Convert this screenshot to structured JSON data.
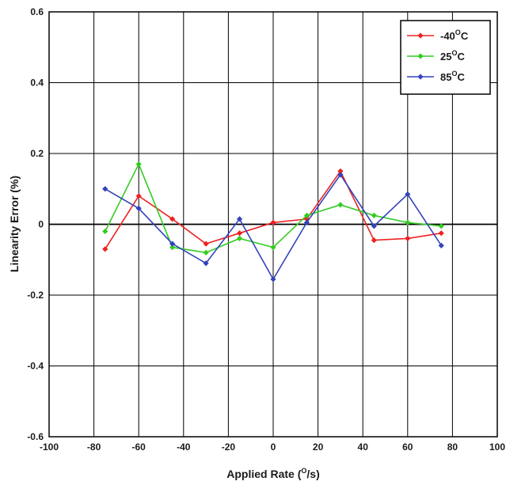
{
  "chart_data": {
    "type": "line",
    "xlabel": {
      "pre": "Applied Rate (",
      "sup": "O",
      "post": "/s)"
    },
    "ylabel": "Linearity Error (%)",
    "xlim": [
      -100,
      100
    ],
    "ylim": [
      -0.6,
      0.6
    ],
    "xticks": [
      -100,
      -80,
      -60,
      -40,
      -20,
      0,
      20,
      40,
      60,
      80,
      100
    ],
    "yticks": [
      -0.6,
      -0.4,
      -0.2,
      0,
      0.2,
      0.4,
      0.6
    ],
    "xtick_labels": [
      "-100",
      "-80",
      "-60",
      "-40",
      "-20",
      "0",
      "20",
      "40",
      "60",
      "80",
      "100"
    ],
    "ytick_labels": [
      "-0.6",
      "-0.4",
      "-0.2",
      "0",
      "0.2",
      "0.4",
      "0.6"
    ],
    "grid": true,
    "legend_position": "top-right",
    "series": [
      {
        "label": {
          "pre": "-40",
          "sup": "O",
          "post": "C"
        },
        "color": "#ee2222",
        "x": [
          -75,
          -60,
          -45,
          -30,
          -15,
          0,
          15,
          30,
          45,
          60,
          75
        ],
        "y": [
          -0.07,
          0.08,
          0.015,
          -0.055,
          -0.025,
          0.005,
          0.015,
          0.15,
          -0.045,
          -0.04,
          -0.025
        ]
      },
      {
        "label": {
          "pre": "25",
          "sup": "O",
          "post": "C"
        },
        "color": "#33cc22",
        "x": [
          -75,
          -60,
          -45,
          -30,
          -15,
          0,
          15,
          30,
          45,
          60,
          75
        ],
        "y": [
          -0.02,
          0.17,
          -0.065,
          -0.08,
          -0.04,
          -0.065,
          0.025,
          0.055,
          0.025,
          0.005,
          -0.005
        ]
      },
      {
        "label": {
          "pre": "85",
          "sup": "O",
          "post": "C"
        },
        "color": "#3344bb",
        "x": [
          -75,
          -60,
          -45,
          -30,
          -15,
          0,
          15,
          30,
          45,
          60,
          75
        ],
        "y": [
          0.1,
          0.045,
          -0.055,
          -0.11,
          0.015,
          -0.155,
          0.005,
          0.14,
          -0.005,
          0.085,
          -0.06
        ]
      }
    ]
  }
}
